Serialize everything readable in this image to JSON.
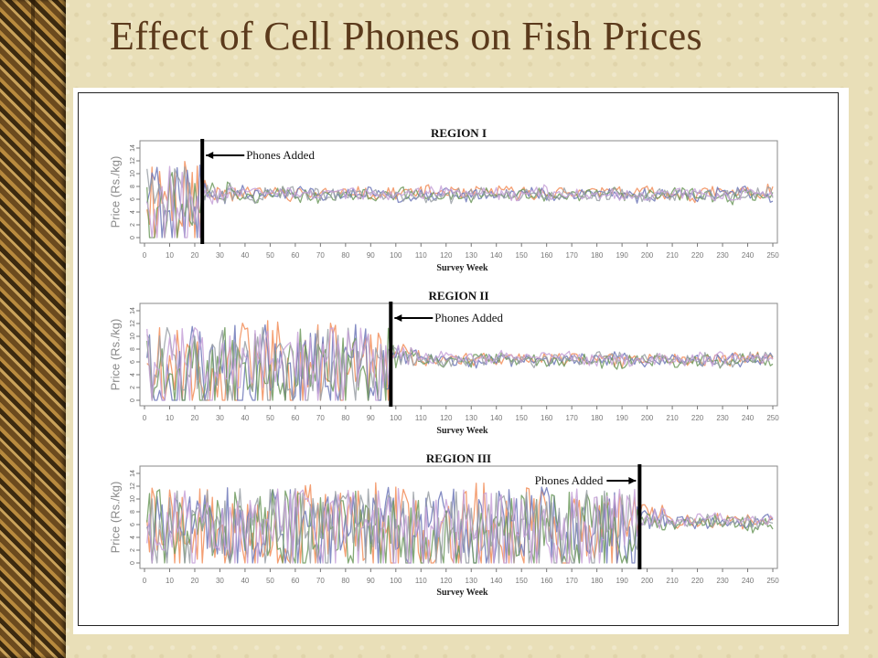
{
  "slide": {
    "title": "Effect of Cell Phones on Fish Prices"
  },
  "chart_data": [
    {
      "type": "line",
      "title": "REGION I",
      "xlabel": "Survey Week",
      "ylabel": "Price (Rs./kg)",
      "xlim": [
        0,
        250
      ],
      "ylim": [
        0,
        14
      ],
      "xticks": [
        0,
        10,
        20,
        30,
        40,
        50,
        60,
        70,
        80,
        90,
        100,
        110,
        120,
        130,
        140,
        150,
        160,
        170,
        180,
        190,
        200,
        210,
        220,
        230,
        240,
        250
      ],
      "yticks": [
        0,
        2,
        4,
        6,
        8,
        10,
        12,
        14
      ],
      "grid": false,
      "annotation": {
        "text": "Phones Added",
        "week": 23
      },
      "series": [
        {
          "color": "#f28e5a",
          "mean": 7.0,
          "pre_volatility": 5.8,
          "post_volatility": 0.9,
          "seed": 11
        },
        {
          "color": "#6f78b8",
          "mean": 6.8,
          "pre_volatility": 5.2,
          "post_volatility": 0.9,
          "seed": 23
        },
        {
          "color": "#6f9a5e",
          "mean": 6.6,
          "pre_volatility": 4.8,
          "post_volatility": 0.9,
          "seed": 37
        },
        {
          "color": "#9aa0a6",
          "mean": 6.7,
          "pre_volatility": 5.0,
          "post_volatility": 0.9,
          "seed": 51
        },
        {
          "color": "#c7a2d8",
          "mean": 6.9,
          "pre_volatility": 4.5,
          "post_volatility": 0.8,
          "seed": 67
        }
      ]
    },
    {
      "type": "line",
      "title": "REGION II",
      "xlabel": "Survey Week",
      "ylabel": "Price (Rs./kg)",
      "xlim": [
        0,
        250
      ],
      "ylim": [
        0,
        14
      ],
      "xticks": [
        0,
        10,
        20,
        30,
        40,
        50,
        60,
        70,
        80,
        90,
        100,
        110,
        120,
        130,
        140,
        150,
        160,
        170,
        180,
        190,
        200,
        210,
        220,
        230,
        240,
        250
      ],
      "yticks": [
        0,
        2,
        4,
        6,
        8,
        10,
        12,
        14
      ],
      "grid": false,
      "annotation": {
        "text": "Phones Added",
        "week": 98
      },
      "series": [
        {
          "color": "#f28e5a",
          "mean": 6.5,
          "pre_volatility": 6.0,
          "post_volatility": 0.9,
          "seed": 101
        },
        {
          "color": "#6f78b8",
          "mean": 6.3,
          "pre_volatility": 5.6,
          "post_volatility": 0.9,
          "seed": 113
        },
        {
          "color": "#6f9a5e",
          "mean": 6.2,
          "pre_volatility": 5.2,
          "post_volatility": 0.9,
          "seed": 127
        },
        {
          "color": "#9aa0a6",
          "mean": 6.4,
          "pre_volatility": 5.0,
          "post_volatility": 0.9,
          "seed": 139
        },
        {
          "color": "#c7a2d8",
          "mean": 6.6,
          "pre_volatility": 4.8,
          "post_volatility": 0.8,
          "seed": 151
        }
      ]
    },
    {
      "type": "line",
      "title": "REGION III",
      "xlabel": "Survey Week",
      "ylabel": "Price (Rs./kg)",
      "xlim": [
        0,
        250
      ],
      "ylim": [
        0,
        14
      ],
      "xticks": [
        0,
        10,
        20,
        30,
        40,
        50,
        60,
        70,
        80,
        90,
        100,
        110,
        120,
        130,
        140,
        150,
        160,
        170,
        180,
        190,
        200,
        210,
        220,
        230,
        240,
        250
      ],
      "yticks": [
        0,
        2,
        4,
        6,
        8,
        10,
        12,
        14
      ],
      "grid": false,
      "annotation": {
        "text": "Phones Added",
        "week": 197
      },
      "series": [
        {
          "color": "#f28e5a",
          "mean": 6.6,
          "pre_volatility": 6.2,
          "post_volatility": 0.9,
          "seed": 201
        },
        {
          "color": "#6f78b8",
          "mean": 6.4,
          "pre_volatility": 5.8,
          "post_volatility": 0.9,
          "seed": 211
        },
        {
          "color": "#6f9a5e",
          "mean": 6.3,
          "pre_volatility": 5.4,
          "post_volatility": 0.9,
          "seed": 223
        },
        {
          "color": "#9aa0a6",
          "mean": 6.5,
          "pre_volatility": 5.2,
          "post_volatility": 0.9,
          "seed": 233
        },
        {
          "color": "#c7a2d8",
          "mean": 6.7,
          "pre_volatility": 5.0,
          "post_volatility": 0.8,
          "seed": 241
        }
      ]
    }
  ]
}
